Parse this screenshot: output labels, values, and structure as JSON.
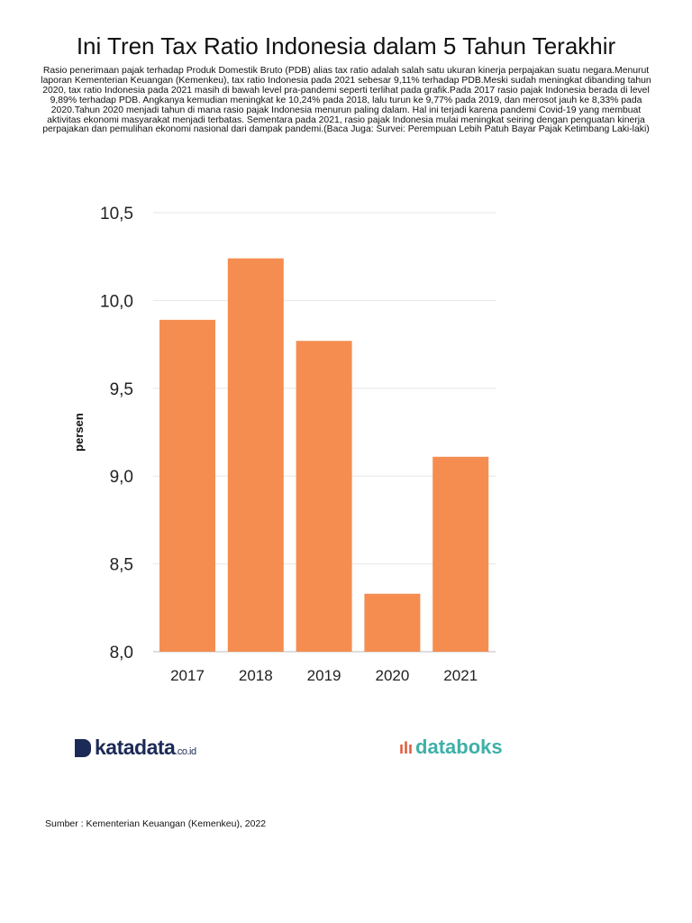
{
  "title": "Ini Tren Tax Ratio Indonesia dalam 5 Tahun Terakhir",
  "description": "Rasio penerimaan pajak terhadap Produk Domestik Bruto (PDB) alias tax ratio adalah salah satu ukuran kinerja perpajakan suatu negara.Menurut laporan Kementerian Keuangan (Kemenkeu), tax ratio Indonesia pada 2021 sebesar 9,11% terhadap PDB.Meski sudah meningkat dibanding tahun 2020, tax ratio Indonesia pada 2021 masih di bawah level pra-pandemi seperti terlihat pada grafik.Pada 2017 rasio pajak Indonesia berada di level 9,89% terhadap PDB. Angkanya kemudian meningkat ke 10,24% pada 2018, lalu turun ke 9,77% pada 2019, dan merosot jauh ke 8,33% pada 2020.Tahun 2020 menjadi tahun di mana rasio pajak Indonesia menurun paling dalam. Hal ini terjadi karena pandemi Covid-19 yang membuat aktivitas ekonomi masyarakat menjadi terbatas. Sementara pada 2021, rasio pajak Indonesia mulai meningkat seiring dengan penguatan kinerja perpajakan dan pemulihan ekonomi nasional dari dampak pandemi.(Baca Juga: Survei: Perempuan Lebih Patuh Bayar Pajak Ketimbang Laki-laki)",
  "logos": {
    "katadata": "katadata",
    "katadata_suffix": ".co.id",
    "databoks": "databoks"
  },
  "source": "Sumber : Kementerian Keuangan (Kemenkeu), 2022",
  "chart_data": {
    "type": "bar",
    "categories": [
      "2017",
      "2018",
      "2019",
      "2020",
      "2021"
    ],
    "values": [
      9.89,
      10.24,
      9.77,
      8.33,
      9.11
    ],
    "ylabel": "persen",
    "xlabel": "",
    "ylim": [
      8.0,
      10.5
    ],
    "yticks": [
      "8,0",
      "8,5",
      "9,0",
      "9,5",
      "10,0",
      "10,5"
    ],
    "grid": true,
    "bar_color": "#f58d50"
  }
}
